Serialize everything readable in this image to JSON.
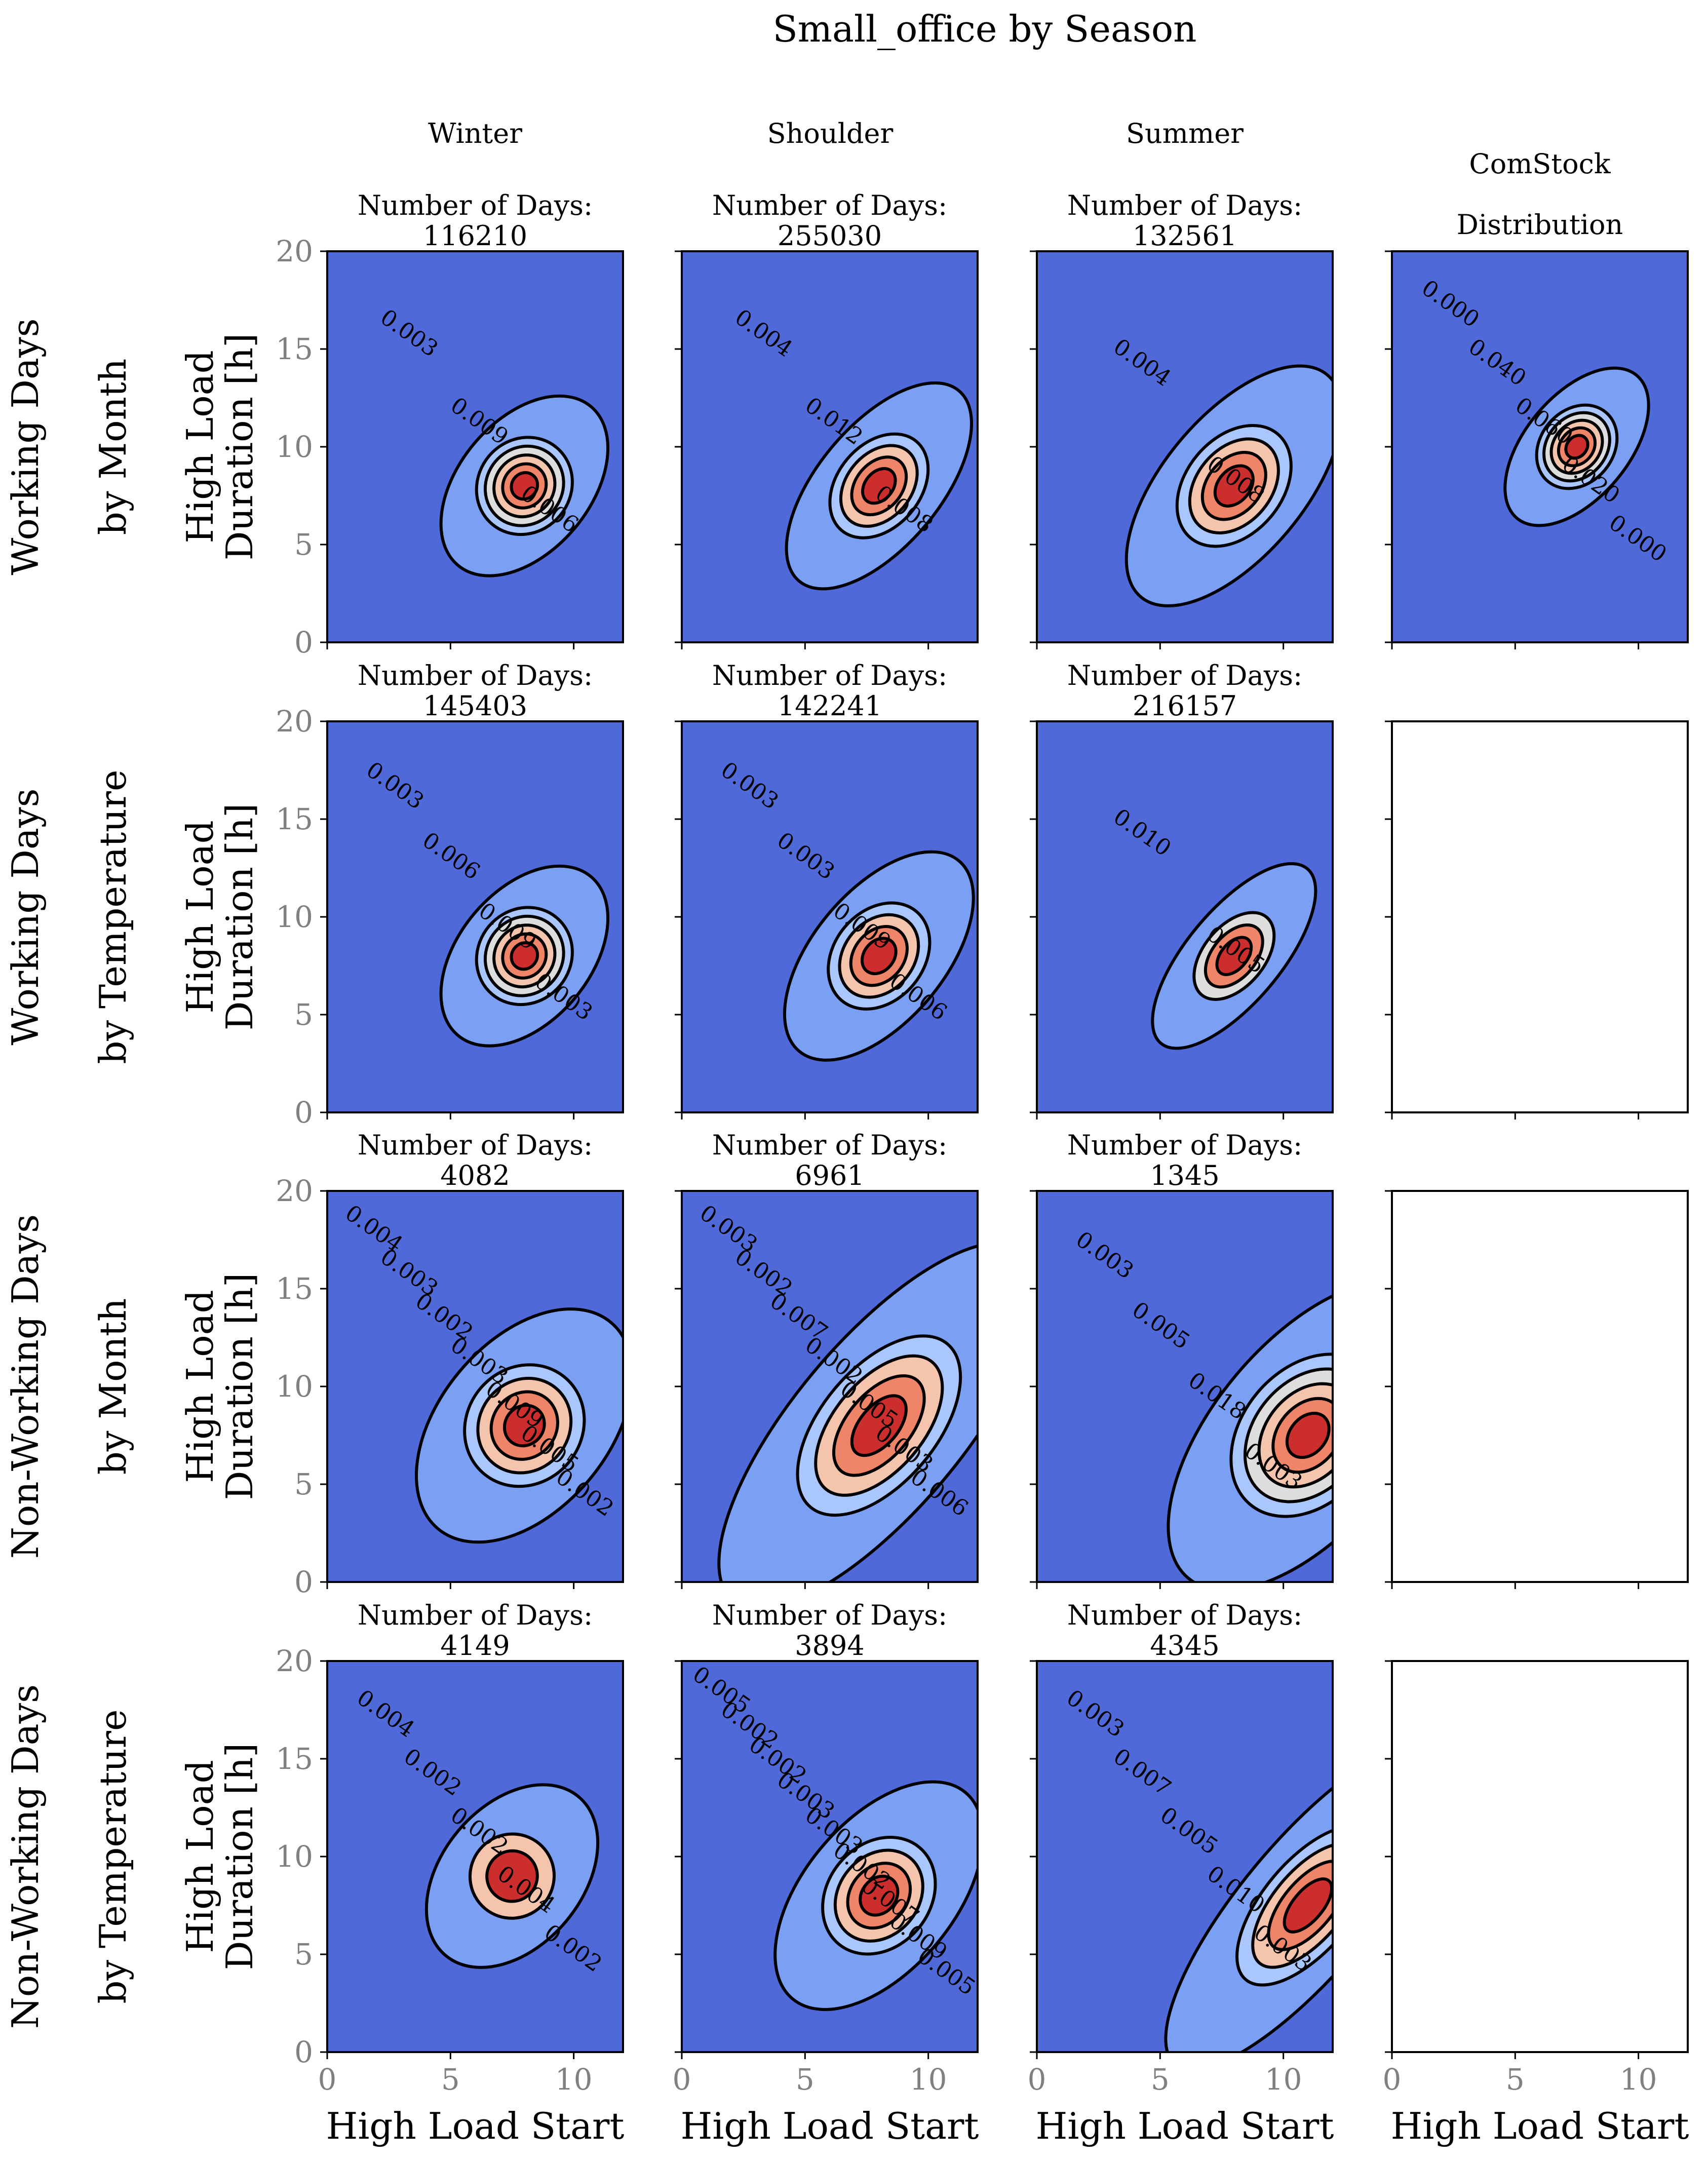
{
  "title": "Small_office by Season",
  "column_titles": [
    "Winter",
    "Shoulder",
    "Summer",
    "ComStock",
    "Distribution"
  ],
  "row_labels": [
    [
      "Working Days",
      "by Month"
    ],
    [
      "Working Days",
      "by Temperature"
    ],
    [
      "Non-Working Days",
      "by Month"
    ],
    [
      "Non-Working Days",
      "by Temperature"
    ]
  ],
  "days_label": "Number of Days:",
  "colors": {
    "background_level": "#4f69d8",
    "mid_level": "#7b9ff2",
    "light_level": "#aac7fd",
    "neutral_level": "#dddddd",
    "warm_level": "#f5c4ad",
    "hot_level": "#ee8468",
    "peak_level": "#cc2e2e"
  },
  "chart_data": {
    "type": "contour",
    "colormap": "coolwarm",
    "xlabel": "High Load Start",
    "ylabel": [
      "High Load",
      "Duration [h]"
    ],
    "xlim": [
      0,
      12
    ],
    "ylim": [
      0,
      20
    ],
    "xticks": [
      "0",
      "5",
      "10"
    ],
    "yticks": [
      "0",
      "5",
      "10",
      "15",
      "20"
    ],
    "panels": [
      {
        "row": 0,
        "col": 0,
        "season": "Winter",
        "days": "116210",
        "peak": [
          8,
          8
        ],
        "spread": [
          1.0,
          1.4
        ],
        "levels": 6,
        "contour_labels": [
          "0.003",
          "0.009",
          "0.006"
        ]
      },
      {
        "row": 0,
        "col": 1,
        "season": "Shoulder",
        "days": "255030",
        "peak": [
          8,
          8
        ],
        "spread": [
          1.2,
          1.3
        ],
        "levels": 5,
        "contour_labels": [
          "0.004",
          "0.012",
          "0.008"
        ]
      },
      {
        "row": 0,
        "col": 2,
        "season": "Summer",
        "days": "132561",
        "peak": [
          8,
          8
        ],
        "spread": [
          1.4,
          1.5
        ],
        "levels": 5,
        "contour_labels": [
          "0.004",
          "0.008"
        ]
      },
      {
        "row": 0,
        "col": 3,
        "season": "ComStock Distribution",
        "days": "",
        "peak": [
          7.5,
          10
        ],
        "spread": [
          0.9,
          1.1
        ],
        "levels": 6,
        "contour_labels": [
          "0.000",
          "0.040",
          "0.060",
          "0.020",
          "0.000"
        ]
      },
      {
        "row": 1,
        "col": 0,
        "season": "Winter",
        "days": "145403",
        "peak": [
          8,
          8
        ],
        "spread": [
          1.0,
          1.4
        ],
        "levels": 6,
        "contour_labels": [
          "0.003",
          "0.006",
          "0.009",
          "0.003"
        ]
      },
      {
        "row": 1,
        "col": 1,
        "season": "Shoulder",
        "days": "142241",
        "peak": [
          8,
          8
        ],
        "spread": [
          1.2,
          1.4
        ],
        "levels": 5,
        "contour_labels": [
          "0.003",
          "0.003",
          "0.009",
          "0.006"
        ]
      },
      {
        "row": 1,
        "col": 2,
        "season": "Summer",
        "days": "216157",
        "peak": [
          8,
          8
        ],
        "spread": [
          1.1,
          1.0
        ],
        "levels": 4,
        "contour_labels": [
          "0.010",
          "0.005"
        ]
      },
      {
        "row": 1,
        "col": 3,
        "season": "",
        "days": "",
        "empty": true
      },
      {
        "row": 2,
        "col": 0,
        "season": "Winter",
        "days": "4082",
        "peak": [
          8,
          8
        ],
        "spread": [
          1.3,
          1.8
        ],
        "levels": 5,
        "contour_labels": [
          "0.004",
          "0.003",
          "0.002",
          "0.003",
          "0.009",
          "0.005",
          "0.002"
        ]
      },
      {
        "row": 2,
        "col": 1,
        "season": "Shoulder",
        "days": "6961",
        "peak": [
          8,
          8
        ],
        "spread": [
          2.2,
          1.8
        ],
        "levels": 5,
        "contour_labels": [
          "0.003",
          "0.002",
          "0.007",
          "0.002",
          "0.005",
          "0.003",
          "0.006"
        ]
      },
      {
        "row": 2,
        "col": 2,
        "season": "Summer",
        "days": "1345",
        "peak": [
          11,
          7.5
        ],
        "spread": [
          1.8,
          2.0
        ],
        "levels": 6,
        "contour_labels": [
          "0.003",
          "0.005",
          "0.018",
          "0.003"
        ]
      },
      {
        "row": 2,
        "col": 3,
        "season": "",
        "days": "",
        "empty": true
      },
      {
        "row": 3,
        "col": 0,
        "season": "Winter",
        "days": "4149",
        "peak": [
          7.5,
          9
        ],
        "spread": [
          1.0,
          1.5
        ],
        "levels": 3,
        "contour_labels": [
          "0.004",
          "0.002",
          "0.002",
          "0.004",
          "0.002"
        ]
      },
      {
        "row": 3,
        "col": 1,
        "season": "Shoulder",
        "days": "3894",
        "peak": [
          8,
          8
        ],
        "spread": [
          1.3,
          1.6
        ],
        "levels": 5,
        "contour_labels": [
          "0.005",
          "0.002",
          "0.002",
          "0.003",
          "0.003",
          "0.002",
          "0.007",
          "0.009",
          "0.005"
        ]
      },
      {
        "row": 3,
        "col": 2,
        "season": "Summer",
        "days": "4345",
        "peak": [
          11,
          7.5
        ],
        "spread": [
          2.0,
          1.4
        ],
        "levels": 5,
        "contour_labels": [
          "0.003",
          "0.007",
          "0.005",
          "0.010",
          "0.003"
        ]
      },
      {
        "row": 3,
        "col": 3,
        "season": "",
        "days": "",
        "empty": true
      }
    ]
  }
}
